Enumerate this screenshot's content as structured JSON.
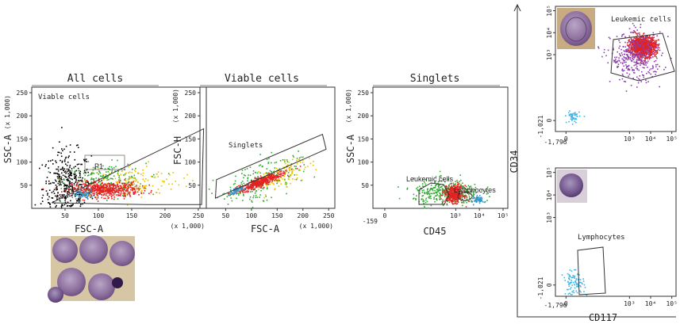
{
  "chart_data": [
    {
      "type": "scatter",
      "title": "All cells",
      "xlabel": "FSC-A",
      "ylabel": "SSC-A",
      "x_multiplier": "(x 1,000)",
      "y_multiplier": "(x 1,000)",
      "x_ticks": [
        "50",
        "100",
        "150",
        "200",
        "250"
      ],
      "y_ticks": [
        "50",
        "100",
        "150",
        "200",
        "250"
      ],
      "xlim": [
        0,
        262
      ],
      "ylim": [
        0,
        262
      ],
      "gates": [
        {
          "label": "Viable cells",
          "polygon": [
            [
              30,
              12
            ],
            [
              258,
              172
            ],
            [
              255,
              8
            ],
            [
              172,
              8
            ]
          ]
        },
        {
          "label": "P1",
          "polygon": []
        }
      ],
      "populations": [
        {
          "color": "#000000",
          "n": 420,
          "x_mean": 52,
          "x_sd": 18,
          "y_mean": 45,
          "y_sd": 40
        },
        {
          "color": "#33aa33",
          "n": 200,
          "x_mean": 110,
          "x_sd": 30,
          "y_mean": 62,
          "y_sd": 18
        },
        {
          "color": "#e6c200",
          "n": 140,
          "x_mean": 150,
          "x_sd": 38,
          "y_mean": 60,
          "y_sd": 18
        },
        {
          "color": "#e32222",
          "n": 520,
          "x_mean": 110,
          "x_sd": 25,
          "y_mean": 42,
          "y_sd": 8
        },
        {
          "color": "#3399cc",
          "n": 60,
          "x_mean": 75,
          "x_sd": 8,
          "y_mean": 30,
          "y_sd": 6
        }
      ]
    },
    {
      "type": "scatter",
      "title": "Viable cells",
      "xlabel": "FSC-A",
      "ylabel": "FSC-H",
      "x_multiplier": "(x 1,000)",
      "y_multiplier": "(x 1,000)",
      "x_ticks": [
        "50",
        "100",
        "150",
        "200",
        "250"
      ],
      "y_ticks": [
        "50",
        "100",
        "150",
        "200",
        "250"
      ],
      "xlim": [
        0,
        262
      ],
      "ylim": [
        0,
        262
      ],
      "gates": [
        {
          "label": "Singlets",
          "polygon": [
            [
              30,
              22
            ],
            [
              245,
              128
            ],
            [
              238,
              160
            ],
            [
              32,
              62
            ]
          ]
        }
      ],
      "populations": [
        {
          "color": "#33aa33",
          "n": 200,
          "x_mean": 115,
          "x_sd": 38,
          "y_mean": 60,
          "y_sd": 20,
          "diag": 0.42
        },
        {
          "color": "#e6c200",
          "n": 120,
          "x_mean": 160,
          "x_sd": 30,
          "y_mean": 75,
          "y_sd": 14,
          "diag": 0.42
        },
        {
          "color": "#e32222",
          "n": 420,
          "x_mean": 115,
          "x_sd": 22,
          "y_mean": 58,
          "y_sd": 5,
          "diag": 0.42
        },
        {
          "color": "#3399cc",
          "n": 60,
          "x_mean": 70,
          "x_sd": 8,
          "y_mean": 40,
          "y_sd": 3,
          "diag": 0.42
        }
      ]
    },
    {
      "type": "scatter",
      "title": "Singlets",
      "xlabel": "CD45",
      "ylabel": "SSC-A",
      "x_scale": "biexponential",
      "y_multiplier": "(x 1,000)",
      "x_min_label": "-159",
      "x_ticks": [
        "0",
        "10³",
        "10⁴",
        "10⁵"
      ],
      "y_ticks": [
        "50",
        "100",
        "150",
        "200",
        "250"
      ],
      "ylim": [
        0,
        262
      ],
      "gates": [
        {
          "label": "Leukemic cells",
          "polygon": []
        },
        {
          "label": "Lymphocytes",
          "polygon": []
        }
      ],
      "populations": [
        {
          "color": "#33aa33",
          "n": 380,
          "x_mean": 2.6,
          "x_sd": 0.7,
          "y_mean": 35,
          "y_sd": 14
        },
        {
          "color": "#e32222",
          "n": 380,
          "x_mean": 2.9,
          "x_sd": 0.2,
          "y_mean": 32,
          "y_sd": 9
        },
        {
          "color": "#3399cc",
          "n": 70,
          "x_mean": 3.95,
          "x_sd": 0.1,
          "y_mean": 20,
          "y_sd": 4
        }
      ]
    },
    {
      "type": "scatter",
      "title": "Leukemic cells",
      "xlabel": "CD117",
      "ylabel": "CD34",
      "x_scale": "biexponential",
      "y_scale": "biexponential",
      "x_min_label": "-1,796",
      "y_min_label": "-1,021",
      "x_ticks": [
        "0",
        "10³",
        "10⁴",
        "10⁵"
      ],
      "y_ticks": [
        "0",
        "10³",
        "10⁴",
        "10⁵"
      ],
      "gates": [
        {
          "label": "Leukemic cells",
          "polygon": []
        }
      ],
      "populations": [
        {
          "color": "#e32222",
          "n": 1100,
          "x_mean": 3.6,
          "x_sd": 0.3,
          "y_mean": 3.4,
          "y_sd": 0.22
        },
        {
          "color": "#8e3fae",
          "n": 380,
          "x_mean": 3.3,
          "x_sd": 0.6,
          "y_mean": 2.9,
          "y_sd": 0.55
        },
        {
          "color": "#3fb6e6",
          "n": 50,
          "x_mean": 0.3,
          "x_sd": 0.15,
          "y_mean": 0.2,
          "y_sd": 0.15
        }
      ]
    },
    {
      "type": "scatter",
      "title": "Lymphocytes",
      "xlabel": "CD117",
      "ylabel": "CD34",
      "x_scale": "biexponential",
      "y_scale": "biexponential",
      "x_min_label": "-1,796",
      "y_min_label": "-1,021",
      "x_ticks": [
        "0",
        "10³",
        "10⁴",
        "10⁵"
      ],
      "y_ticks": [
        "0",
        "10³",
        "10⁴",
        "10⁵"
      ],
      "gates": [
        {
          "label": "Lymphocytes",
          "polygon": []
        }
      ],
      "populations": [
        {
          "color": "#3fb6e6",
          "n": 90,
          "x_mean": 0.35,
          "x_sd": 0.25,
          "y_mean": 0.1,
          "y_sd": 0.25
        }
      ]
    }
  ]
}
